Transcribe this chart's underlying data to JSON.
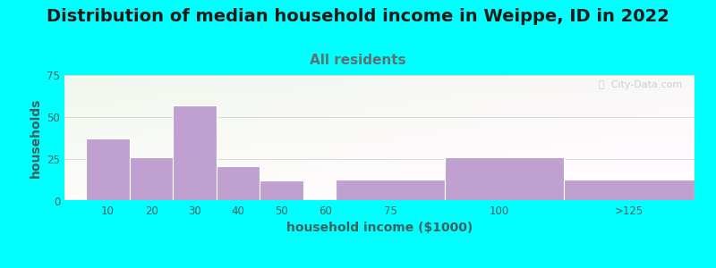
{
  "title": "Distribution of median household income in Weippe, ID in 2022",
  "subtitle": "All residents",
  "xlabel": "household income ($1000)",
  "ylabel": "households",
  "background_color": "#00FFFF",
  "bar_color": "#c0a0d0",
  "bar_edge_color": "#ffffff",
  "values": [
    37,
    26,
    57,
    21,
    12,
    0,
    13,
    26,
    13
  ],
  "ylim": [
    0,
    75
  ],
  "yticks": [
    0,
    25,
    50,
    75
  ],
  "title_fontsize": 14,
  "title_color": "#1a1a1a",
  "subtitle_fontsize": 11,
  "subtitle_color": "#607070",
  "ylabel_color": "#406060",
  "xlabel_color": "#406060",
  "tick_color": "#406060",
  "grid_color": "#d0d8d0",
  "watermark_text": "ⓘ  City-Data.com",
  "watermark_color": "#b8c8c0"
}
